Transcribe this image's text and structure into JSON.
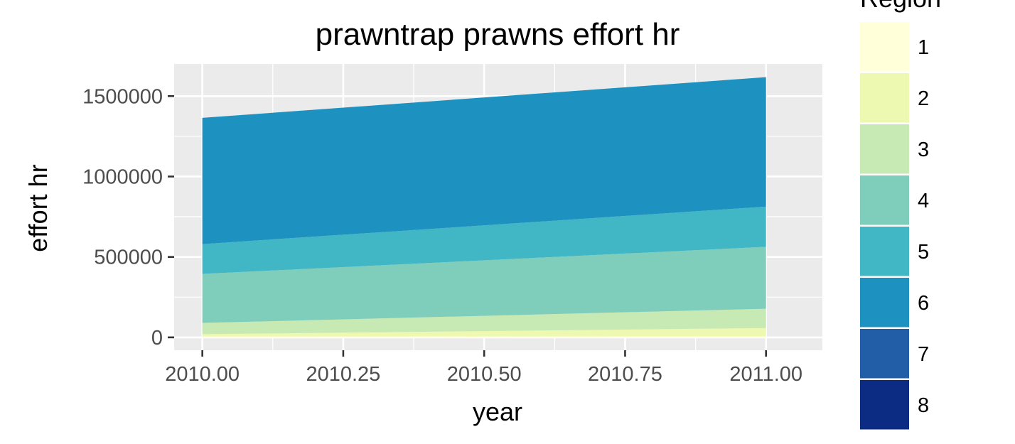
{
  "chart_data": {
    "type": "area",
    "stacked": true,
    "title": "prawntrap prawns effort hr",
    "xlabel": "year",
    "ylabel": "effort hr",
    "x": [
      2010.0,
      2011.0
    ],
    "xlim": [
      2009.95,
      2011.1
    ],
    "ylim": [
      -80000,
      1700000
    ],
    "x_ticks": [
      2010.0,
      2010.25,
      2010.5,
      2010.75,
      2011.0
    ],
    "x_tick_labels": [
      "2010.00",
      "2010.25",
      "2010.50",
      "2010.75",
      "2011.00"
    ],
    "y_ticks": [
      0,
      500000,
      1000000,
      1500000
    ],
    "y_tick_labels": [
      "0",
      "500000",
      "1000000",
      "1500000"
    ],
    "grid": true,
    "legend_title": "Region",
    "legend_position": "right",
    "series": [
      {
        "name": "1",
        "color": "#ffffd9",
        "values": [
          5000,
          8000
        ]
      },
      {
        "name": "2",
        "color": "#edf8b1",
        "values": [
          15000,
          50000
        ]
      },
      {
        "name": "3",
        "color": "#c7e9b4",
        "values": [
          70000,
          120000
        ]
      },
      {
        "name": "4",
        "color": "#7fcdbb",
        "values": [
          305000,
          385000
        ]
      },
      {
        "name": "5",
        "color": "#41b6c4",
        "values": [
          185000,
          250000
        ]
      },
      {
        "name": "6",
        "color": "#1d91c0",
        "values": [
          785000,
          805000
        ]
      },
      {
        "name": "7",
        "color": "#225ea8",
        "values": [
          0,
          0
        ]
      },
      {
        "name": "8",
        "color": "#0c2c84",
        "values": [
          0,
          0
        ]
      }
    ]
  }
}
